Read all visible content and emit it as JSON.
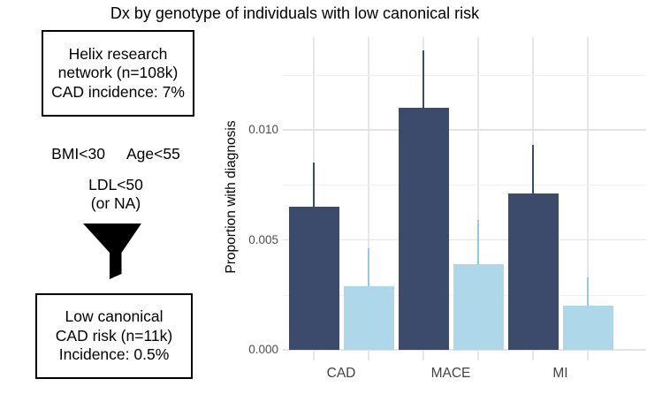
{
  "title": "Dx by genotype of individuals with low canonical risk",
  "flow": {
    "top_box": {
      "lines": [
        "Helix research",
        "network (n=108k)",
        "CAD incidence: 7%"
      ]
    },
    "criteria": {
      "bmi": "BMI<30",
      "age": "Age<55",
      "ldl": "LDL<50",
      "ldl_note": "(or NA)"
    },
    "funnel_icon": "funnel-icon",
    "bottom_box": {
      "lines": [
        "Low canonical",
        "CAD risk (n=11k)",
        "Incidence: 0.5%"
      ]
    }
  },
  "chart_data": {
    "type": "bar",
    "title": "Dx by genotype of individuals with low canonical risk",
    "xlabel": "",
    "ylabel": "Proportion with diagnosis",
    "categories": [
      "CAD",
      "MACE",
      "MI"
    ],
    "series": [
      {
        "name": "dark-navy",
        "color": "#3c4a6b",
        "error_color": "#3c4a6b",
        "values": [
          0.0065,
          0.011,
          0.0071
        ],
        "error_upper": [
          0.0085,
          0.0136,
          0.0093
        ]
      },
      {
        "name": "light-blue",
        "color": "#aed7ea",
        "error_color": "#96c9e4",
        "values": [
          0.0029,
          0.0039,
          0.002
        ],
        "error_upper": [
          0.0046,
          0.0059,
          0.0033
        ]
      }
    ],
    "y_ticks": [
      {
        "value": 0.0,
        "label": "0.000"
      },
      {
        "value": 0.005,
        "label": "0.005"
      },
      {
        "value": 0.01,
        "label": "0.010"
      }
    ],
    "y_minor_ticks": [
      0.0025,
      0.0075,
      0.0125
    ],
    "ylim": [
      0,
      0.0139
    ],
    "legend": "none",
    "grid": {
      "horizontal_major": true,
      "horizontal_minor": true,
      "vertical_at_bar_centers": true
    }
  }
}
